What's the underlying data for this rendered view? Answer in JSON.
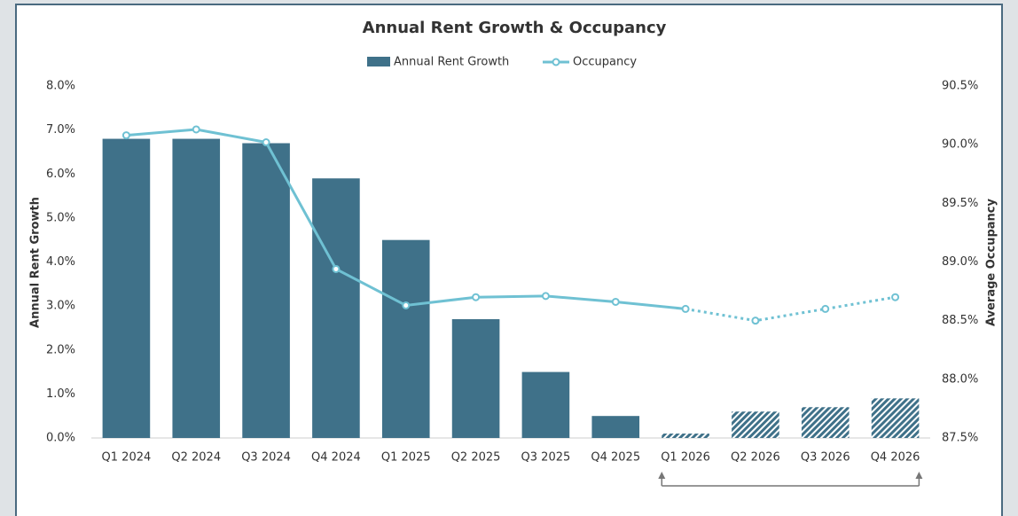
{
  "chart_data": {
    "type": "bar_line",
    "title": "Annual Rent Growth & Occupancy",
    "categories": [
      "Q1 2024",
      "Q2 2024",
      "Q3 2024",
      "Q4 2024",
      "Q1 2025",
      "Q2 2025",
      "Q3 2025",
      "Q4 2025",
      "Q1 2026",
      "Q2 2026",
      "Q3 2026",
      "Q4 2026"
    ],
    "series": [
      {
        "name": "Annual Rent Growth",
        "type": "bar",
        "color": "#3f7189",
        "values": [
          6.8,
          6.8,
          6.7,
          5.9,
          4.5,
          2.7,
          1.5,
          0.5,
          0.1,
          0.6,
          0.7,
          0.9
        ]
      },
      {
        "name": "Occupancy",
        "type": "line",
        "axis": "y2",
        "color": "#6fc1d3",
        "values": [
          90.08,
          90.13,
          90.02,
          88.94,
          88.63,
          88.7,
          88.71,
          88.66,
          88.6,
          88.5,
          88.6,
          88.7
        ]
      }
    ],
    "forecast_start_index": 8,
    "y_label": "Annual Rent Growth",
    "y2_label": "Average Occupancy",
    "ylim": [
      0,
      8
    ],
    "yticks": [
      {
        "value": 0,
        "label": "0.0%"
      },
      {
        "value": 1,
        "label": "1.0%"
      },
      {
        "value": 2,
        "label": "2.0%"
      },
      {
        "value": 3,
        "label": "3.0%"
      },
      {
        "value": 4,
        "label": "4.0%"
      },
      {
        "value": 5,
        "label": "5.0%"
      },
      {
        "value": 6,
        "label": "6.0%"
      },
      {
        "value": 7,
        "label": "7.0%"
      },
      {
        "value": 8,
        "label": "8.0%"
      }
    ],
    "y2lim": [
      87.5,
      90.5
    ],
    "y2ticks": [
      {
        "value": 87.5,
        "label": "87.5%"
      },
      {
        "value": 88,
        "label": "88.0%"
      },
      {
        "value": 88.5,
        "label": "88.5%"
      },
      {
        "value": 89,
        "label": "89.0%"
      },
      {
        "value": 89.5,
        "label": "89.5%"
      },
      {
        "value": 90,
        "label": "90.0%"
      },
      {
        "value": 90.5,
        "label": "90.5%"
      }
    ],
    "legend": "top"
  }
}
